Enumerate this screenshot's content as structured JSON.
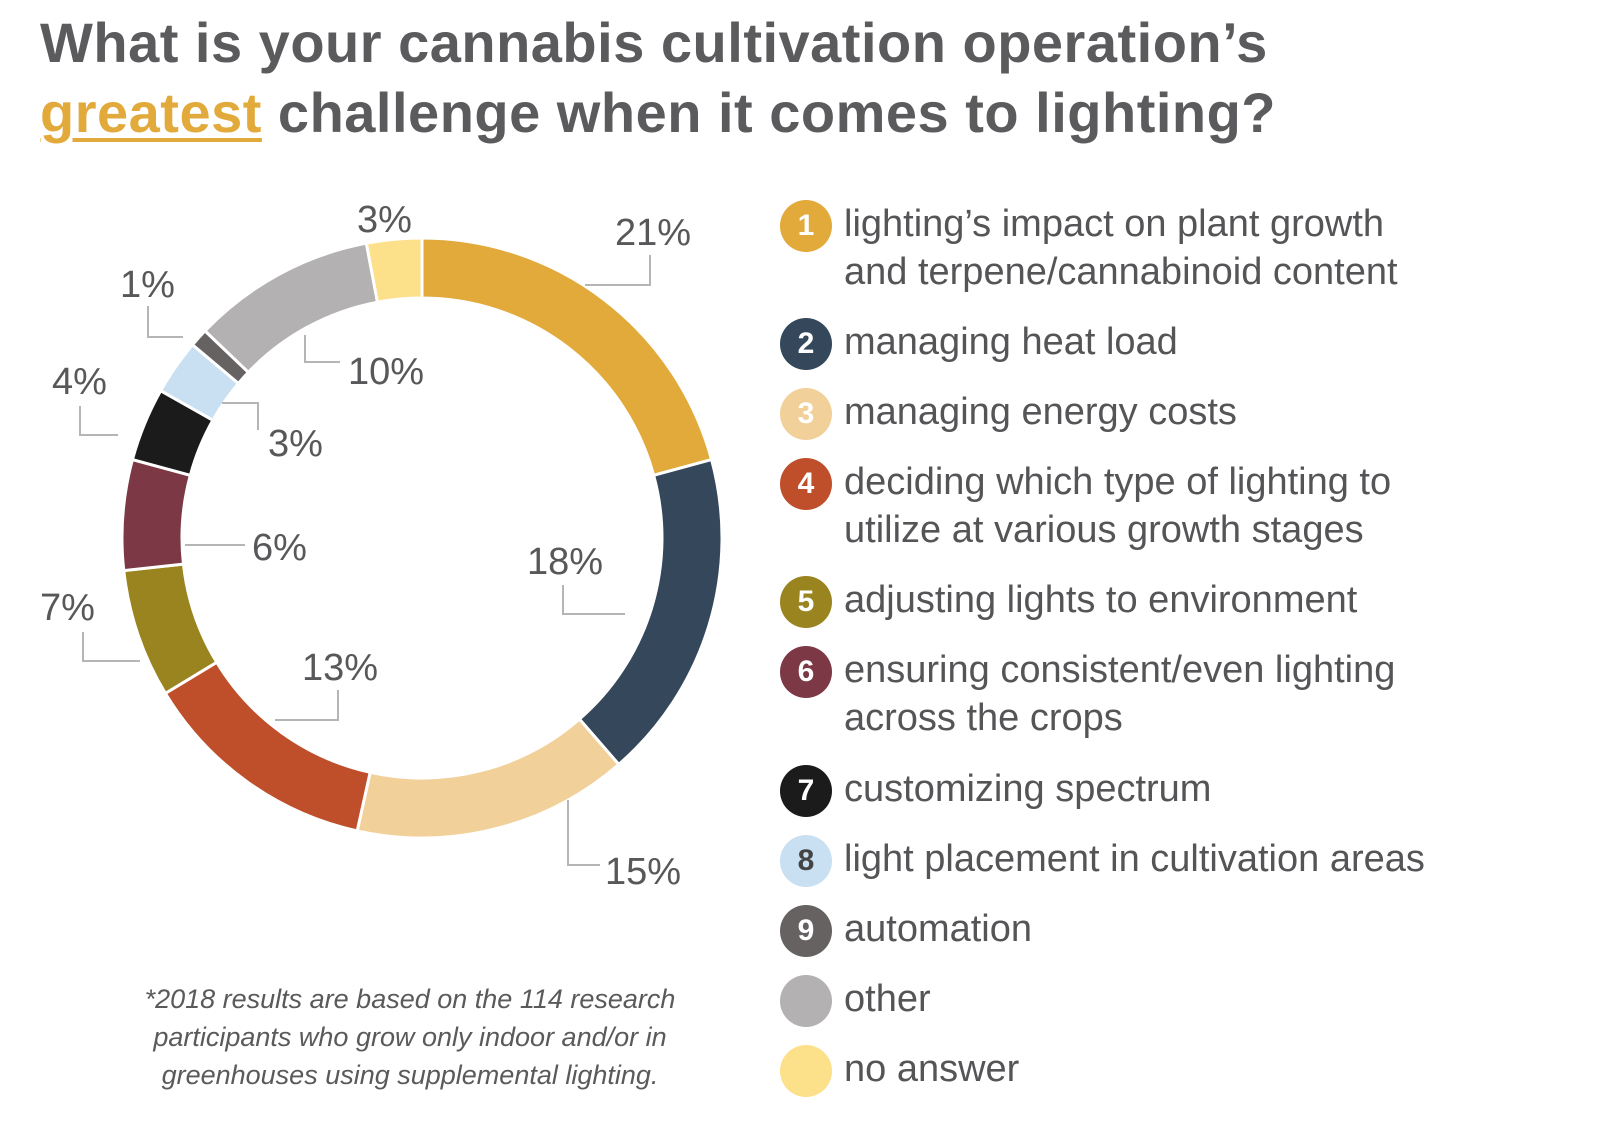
{
  "title": {
    "line1": "What is your cannabis cultivation operation’s",
    "highlight": "greatest",
    "line2_rest": " challenge when it comes to lighting?"
  },
  "chart_data": {
    "type": "pie",
    "donut": true,
    "title": "What is your cannabis cultivation operation’s greatest challenge when it comes to lighting?",
    "categories": [
      "lighting’s impact on plant growth and terpene/cannabinoid content",
      "managing heat load",
      "managing energy costs",
      "deciding which type of lighting to utilize at various growth stages",
      "adjusting lights to environment",
      "ensuring consistent/even lighting across the crops",
      "customizing spectrum",
      "light placement in cultivation areas",
      "automation",
      "other",
      "no answer"
    ],
    "values": [
      21,
      18,
      15,
      13,
      7,
      6,
      4,
      3,
      1,
      10,
      3
    ],
    "labels": [
      "21%",
      "18%",
      "15%",
      "13%",
      "7%",
      "6%",
      "4%",
      "3%",
      "1%",
      "10%",
      "3%"
    ],
    "colors": [
      "#e2a93b",
      "#34475b",
      "#f2d09a",
      "#bf4f2a",
      "#9a8420",
      "#7c3845",
      "#1b1b1b",
      "#c8e0f2",
      "#666262",
      "#b3b1b1",
      "#fde08a"
    ],
    "legend_placement": "right"
  },
  "legend": [
    {
      "num": "1",
      "line1": "lighting’s impact on plant growth",
      "line2": "and terpene/cannabinoid content"
    },
    {
      "num": "2",
      "line1": "managing heat load"
    },
    {
      "num": "3",
      "line1": "managing energy costs"
    },
    {
      "num": "4",
      "line1": "deciding which type of lighting to",
      "line2": "utilize at various growth stages"
    },
    {
      "num": "5",
      "line1": "adjusting lights to environment"
    },
    {
      "num": "6",
      "line1": "ensuring consistent/even lighting",
      "line2": "across the crops"
    },
    {
      "num": "7",
      "line1": "customizing spectrum"
    },
    {
      "num": "8",
      "line1": "light placement in cultivation areas"
    },
    {
      "num": "9",
      "line1": "automation"
    },
    {
      "num": "",
      "line1": "other"
    },
    {
      "num": "",
      "line1": "no answer"
    }
  ],
  "footnote": {
    "line1": "*2018 results are based on the 114 research",
    "line2": "participants who grow only indoor and/or in",
    "line3": "greenhouses using supplemental lighting."
  }
}
